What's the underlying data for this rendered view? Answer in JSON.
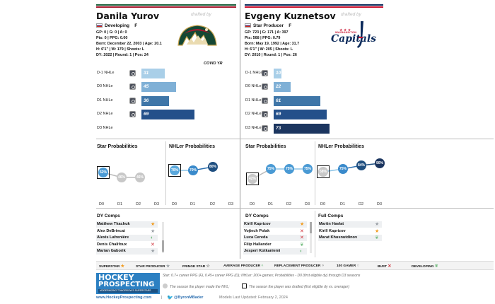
{
  "players": [
    {
      "name": "Danila Yurov",
      "drafted_by": "drafted by",
      "status": "Developing",
      "position": "F",
      "info": [
        "GP: 0 | G: 0 | A: 0",
        "Pts: 0 | PPG: 0.00",
        "Born: December 22, 2003 | Age: 20.1",
        "H: 6'1\" | W: 179 | Shoots: L",
        "DY: 2022 | Round: 1 | Pos: 24"
      ],
      "covid": "COVID YR",
      "team_logo": "minnesota-wild-logo",
      "projections": [
        {
          "label": "D-1 NHLe",
          "value": "31",
          "fraction": 0.31,
          "color": "#a9cfe8"
        },
        {
          "label": "D0 NHLe",
          "value": "45",
          "fraction": 0.45,
          "color": "#7fb0d6"
        },
        {
          "label": "D1 NHLe",
          "value": "36",
          "fraction": 0.36,
          "color": "#3f76a8"
        },
        {
          "label": "D2 NHLe",
          "value": "69",
          "fraction": 0.69,
          "color": "#24508a"
        },
        {
          "label": "D3 NHLe",
          "value": "",
          "fraction": 0,
          "color": "#1b355f"
        }
      ],
      "star_probs": [
        "52%",
        "46%",
        "46%"
      ],
      "nhler_probs": [
        "70%",
        "70%",
        "80%"
      ],
      "comps_title": "DY Comps",
      "comps": [
        {
          "name": "Matthew Tkachuk",
          "icon": "star-orange-icon"
        },
        {
          "name": "Alex DeBrincat",
          "icon": "star-gray-icon"
        },
        {
          "name": "Alexis Lafrenière",
          "icon": "half-circle-icon"
        },
        {
          "name": "Denis Chalifoux",
          "icon": "x-icon"
        },
        {
          "name": "Marian Gaborik",
          "icon": "star-gray-icon"
        }
      ]
    },
    {
      "name": "Evgeny Kuznetsov",
      "drafted_by": "drafted by",
      "status": "Star Producer",
      "position": "F",
      "info": [
        "GP: 723 | G: 171 | A: 397",
        "Pts: 568 | PPG: 0.79",
        "Born: May 19, 1992 | Age: 31.7",
        "H: 6'1\" | W: 205 | Shoots: L",
        "DY: 2010 | Round: 1 | Pos: 26"
      ],
      "team_logo": "washington-capitals-logo",
      "logo_top": "WASHINGTON",
      "logo_text": "Capitals",
      "projections": [
        {
          "label": "D-1 NHLe",
          "value": "10",
          "fraction": 0.1,
          "color": "#a9cfe8"
        },
        {
          "label": "D0 NHLe",
          "value": "22",
          "fraction": 0.22,
          "color": "#7fb0d6"
        },
        {
          "label": "D1 NHLe",
          "value": "61",
          "fraction": 0.61,
          "color": "#3f76a8"
        },
        {
          "label": "D2 NHLe",
          "value": "69",
          "fraction": 0.69,
          "color": "#24508a"
        },
        {
          "label": "D3 NHLe",
          "value": "73",
          "fraction": 0.73,
          "color": "#1b355f"
        }
      ],
      "star_probs": [
        "42%",
        "75%",
        "75%",
        "75%"
      ],
      "nhler_probs": [
        "58%",
        "75%",
        "84%",
        "90%"
      ],
      "comps_title": "DY Comps",
      "comps": [
        {
          "name": "Kirill Kaprizov",
          "icon": "star-orange-icon"
        },
        {
          "name": "Vojtech Polak",
          "icon": "x-icon"
        },
        {
          "name": "Luca Cereda",
          "icon": "x-icon"
        },
        {
          "name": "Filip Hallander",
          "icon": "sprout-icon"
        },
        {
          "name": "Jesperi Kotkaniemi",
          "icon": "half-circle-icon"
        }
      ],
      "full_comps_title": "Full Comps",
      "full_comps": [
        {
          "name": "Martin Havlat",
          "icon": "star-gray-icon"
        },
        {
          "name": "Kirill Kaprizov",
          "icon": "star-orange-icon"
        },
        {
          "name": "Marat Khusnutdinov",
          "icon": "sprout-icon"
        }
      ]
    }
  ],
  "section_titles": {
    "star": "Star Probabilities",
    "nhler": "NHLer Probabilities"
  },
  "d_labels": [
    "D0",
    "D1",
    "D2",
    "D3"
  ],
  "legend": [
    {
      "label": "SUPERSTAR",
      "icon": "star-orange-icon"
    },
    {
      "label": "STAR PRODUCER",
      "icon": "star-gray-icon"
    },
    {
      "label": "FRINGE STAR",
      "icon": "star-outline-icon"
    },
    {
      "label": "AVERAGE PRODUCER",
      "icon": "half-circle-icon"
    },
    {
      "label": "REPLACEMENT PRODUCER",
      "icon": "half-circle-gray-icon"
    },
    {
      "label": "100 GAMER",
      "icon": "circle-icon"
    },
    {
      "label": "BUST",
      "icon": "x-icon"
    },
    {
      "label": "DEVELOPING",
      "icon": "sprout-icon"
    }
  ],
  "brand": {
    "line1": "HOCKEY",
    "line2": "PROSPECTING",
    "tagline": "MODERNIZING TOMORROW'S SUPERSTARS"
  },
  "notes": {
    "definitions": "Star: 0.7+ career PPG (F), 0.45+ career PPG (D); NHLer: 200+ games; Probabilities - D0 (first eligible dy) through D3 seasons",
    "circle_note": "The season the player made the NHL;",
    "square_note": "The season the player was drafted (first eligible dy vs. overager)"
  },
  "footer": {
    "website": "www.HockeyProspecting.com",
    "separator": "|",
    "twitter": "@ByronMBader",
    "updated": "Models Last Updated: February 2, 2024"
  }
}
